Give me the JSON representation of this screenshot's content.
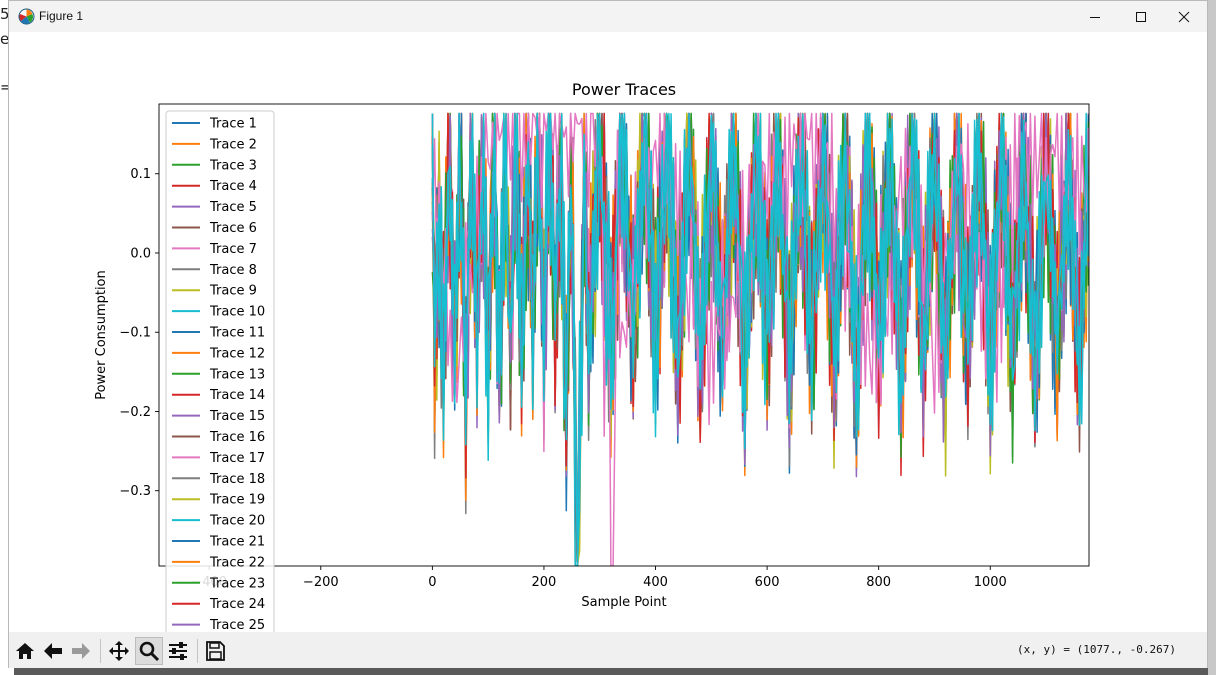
{
  "window": {
    "title": "Figure 1",
    "left_fragments": [
      "5",
      "e",
      "="
    ]
  },
  "toolbar": {
    "buttons": [
      "home-icon",
      "back-icon",
      "forward-icon",
      "pan-icon",
      "zoom-icon",
      "configure-subplots-icon",
      "save-icon"
    ],
    "coords_text": "(x, y) = (1077., -0.267)"
  },
  "colors": {
    "tab10": [
      "#1f77b4",
      "#ff7f0e",
      "#2ca02c",
      "#d62728",
      "#9467bd",
      "#8c564b",
      "#e377c2",
      "#7f7f7f",
      "#bcbd22",
      "#17becf"
    ]
  },
  "chart_data": {
    "type": "line",
    "title": "Power Traces",
    "xlabel": "Sample Point",
    "ylabel": "Power Consumption",
    "xlim": [
      -490,
      1177
    ],
    "ylim": [
      -0.395,
      0.188
    ],
    "xticks": [
      -400,
      -200,
      0,
      200,
      400,
      600,
      800,
      1000
    ],
    "xtick_labels": [
      "−400",
      "−200",
      "0",
      "200",
      "400",
      "600",
      "800",
      "1000"
    ],
    "yticks": [
      0.1,
      0.0,
      -0.1,
      -0.2,
      -0.3
    ],
    "ytick_labels": [
      "0.1",
      "0.0",
      "−0.1",
      "−0.2",
      "−0.3"
    ],
    "legend": "upper left",
    "series_names": [
      "Trace 1",
      "Trace 2",
      "Trace 3",
      "Trace 4",
      "Trace 5",
      "Trace 6",
      "Trace 7",
      "Trace 8",
      "Trace 9",
      "Trace 10",
      "Trace 11",
      "Trace 12",
      "Trace 13",
      "Trace 14",
      "Trace 15",
      "Trace 16",
      "Trace 17",
      "Trace 18",
      "Trace 19",
      "Trace 20",
      "Trace 21",
      "Trace 22",
      "Trace 23",
      "Trace 24",
      "Trace 25"
    ],
    "sample_range": [
      0,
      1177
    ],
    "base_trace": {
      "x": [
        0,
        5,
        10,
        20,
        30,
        40,
        50,
        60,
        70,
        80,
        90,
        100,
        110,
        120,
        130,
        140,
        150,
        160,
        170,
        180,
        190,
        200,
        210,
        220,
        230,
        240,
        250,
        255,
        260,
        262,
        265,
        270,
        280,
        300,
        320,
        340,
        360,
        380,
        400,
        420,
        440,
        460,
        480,
        500,
        520,
        540,
        560,
        580,
        600,
        620,
        640,
        660,
        680,
        700,
        720,
        740,
        760,
        780,
        800,
        820,
        840,
        860,
        880,
        900,
        920,
        940,
        960,
        980,
        1000,
        1020,
        1040,
        1060,
        1080,
        1100,
        1120,
        1140,
        1160,
        1177
      ],
      "y": [
        0.12,
        -0.17,
        0.05,
        -0.12,
        0.16,
        -0.13,
        0.14,
        -0.18,
        0.13,
        -0.08,
        0.14,
        -0.14,
        0.15,
        -0.17,
        0.12,
        -0.1,
        0.15,
        -0.12,
        0.13,
        -0.09,
        0.16,
        -0.11,
        0.17,
        -0.08,
        0.12,
        -0.2,
        0.14,
        -0.22,
        -0.395,
        0.08,
        -0.395,
        0.13,
        -0.11,
        0.14,
        -0.12,
        0.13,
        -0.09,
        0.15,
        -0.1,
        0.13,
        -0.12,
        0.14,
        -0.13,
        0.12,
        -0.1,
        0.13,
        -0.14,
        0.12,
        -0.09,
        0.13,
        -0.13,
        0.12,
        -0.1,
        0.13,
        -0.12,
        0.12,
        -0.14,
        0.13,
        -0.1,
        0.12,
        -0.13,
        0.12,
        -0.11,
        0.13,
        -0.14,
        0.12,
        -0.1,
        0.12,
        -0.13,
        0.12,
        -0.12,
        0.13,
        -0.14,
        0.12,
        -0.11,
        0.12,
        -0.13,
        0.11
      ]
    },
    "outlier_trace": {
      "name": "Trace 7",
      "x": [
        0,
        40,
        100,
        150,
        220,
        240,
        260,
        280,
        300,
        310,
        315,
        320,
        325,
        330,
        340,
        400,
        500,
        600,
        700,
        800,
        850,
        900,
        950,
        1000,
        1050,
        1080,
        1100,
        1177
      ],
      "y": [
        0.12,
        -0.18,
        0.14,
        0.16,
        0.17,
        0.16,
        0.15,
        0.16,
        0.15,
        -0.19,
        0.09,
        -0.395,
        -0.395,
        0.13,
        -0.15,
        0.14,
        -0.13,
        0.12,
        0.13,
        -0.14,
        0.12,
        -0.13,
        0.12,
        -0.14,
        0.12,
        0.12,
        0.1,
        0.11
      ]
    }
  }
}
